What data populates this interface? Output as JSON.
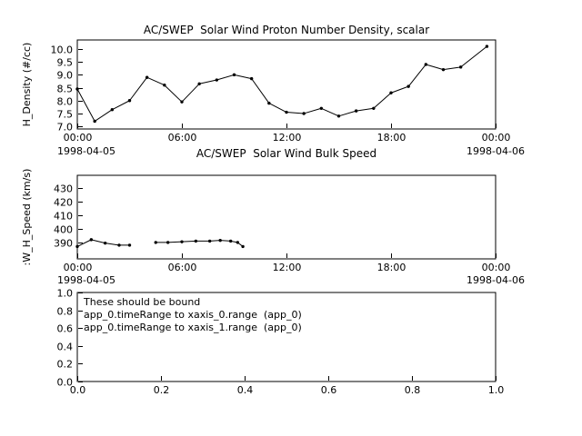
{
  "page": {
    "bg": "#ffffff",
    "fg": "#000000"
  },
  "chart_data": [
    {
      "type": "line",
      "title": "AC/SWEP  Solar Wind Proton Number Density, scalar",
      "ylabel": "H_Density (#/cc)",
      "x_start_label": "1998-04-05",
      "x_end_label": "1998-04-06",
      "xlim": [
        0,
        24
      ],
      "ylim": [
        6.9,
        10.35
      ],
      "xticks": [
        0,
        6,
        12,
        18,
        24
      ],
      "xtick_labels": [
        "00:00",
        "06:00",
        "12:00",
        "18:00",
        "00:00"
      ],
      "yticks": [
        7.0,
        7.5,
        8.0,
        8.5,
        9.0,
        9.5,
        10.0
      ],
      "ytick_labels": [
        "7.0",
        "7.5",
        "8.0",
        "8.5",
        "9.0",
        "9.5",
        "10.0"
      ],
      "grid": false,
      "marker": "dot",
      "points": [
        [
          0,
          8.45
        ],
        [
          1,
          7.2
        ],
        [
          2,
          7.65
        ],
        [
          3,
          8.0
        ],
        [
          4,
          8.9
        ],
        [
          5,
          8.6
        ],
        [
          6,
          7.95
        ],
        [
          7,
          8.65
        ],
        [
          8,
          8.8
        ],
        [
          9,
          9.0
        ],
        [
          10,
          8.85
        ],
        [
          11,
          7.9
        ],
        [
          12,
          7.55
        ],
        [
          13,
          7.5
        ],
        [
          14,
          7.7
        ],
        [
          15,
          7.4
        ],
        [
          16,
          7.6
        ],
        [
          17,
          7.7
        ],
        [
          18,
          8.3
        ],
        [
          19,
          8.55
        ],
        [
          20,
          9.4
        ],
        [
          21,
          9.2
        ],
        [
          22,
          9.3
        ],
        [
          23.5,
          10.1
        ]
      ]
    },
    {
      "type": "line",
      "title": "AC/SWEP  Solar Wind Bulk Speed",
      "ylabel": ":W_H_Speed (km/s)",
      "x_start_label": "1998-04-05",
      "x_end_label": "1998-04-06",
      "xlim": [
        0,
        24
      ],
      "ylim": [
        378,
        439
      ],
      "xticks": [
        0,
        6,
        12,
        18,
        24
      ],
      "xtick_labels": [
        "00:00",
        "06:00",
        "12:00",
        "18:00",
        "00:00"
      ],
      "yticks": [
        390,
        400,
        410,
        420,
        430
      ],
      "ytick_labels": [
        "390",
        "400",
        "410",
        "420",
        "430"
      ],
      "grid": false,
      "marker": "dot",
      "points": [
        [
          0,
          387
        ],
        [
          0.8,
          392
        ],
        [
          1.6,
          389.5
        ],
        [
          2.4,
          388
        ],
        [
          3.0,
          388
        ],
        null,
        [
          4.5,
          390
        ],
        [
          5.2,
          390
        ],
        [
          6.0,
          390.5
        ],
        [
          6.8,
          391
        ],
        [
          7.6,
          391
        ],
        [
          8.2,
          391.5
        ],
        [
          8.8,
          391
        ],
        [
          9.2,
          390
        ],
        [
          9.5,
          387
        ]
      ]
    },
    {
      "type": "empty",
      "title": "",
      "ylabel": "",
      "xlim": [
        0,
        1
      ],
      "ylim": [
        0,
        1
      ],
      "xticks": [
        0,
        0.2,
        0.4,
        0.6,
        0.8,
        1.0
      ],
      "xtick_labels": [
        "0.0",
        "0.2",
        "0.4",
        "0.6",
        "0.8",
        "1.0"
      ],
      "yticks": [
        0,
        0.2,
        0.4,
        0.6,
        0.8,
        1.0
      ],
      "ytick_labels": [
        "0.0",
        "0.2",
        "0.4",
        "0.6",
        "0.8",
        "1.0"
      ],
      "grid": false,
      "points": [],
      "annotation": [
        "These should be bound",
        "app_0.timeRange to xaxis_0.range  (app_0)",
        "app_0.timeRange to xaxis_1.range  (app_0)"
      ]
    }
  ]
}
